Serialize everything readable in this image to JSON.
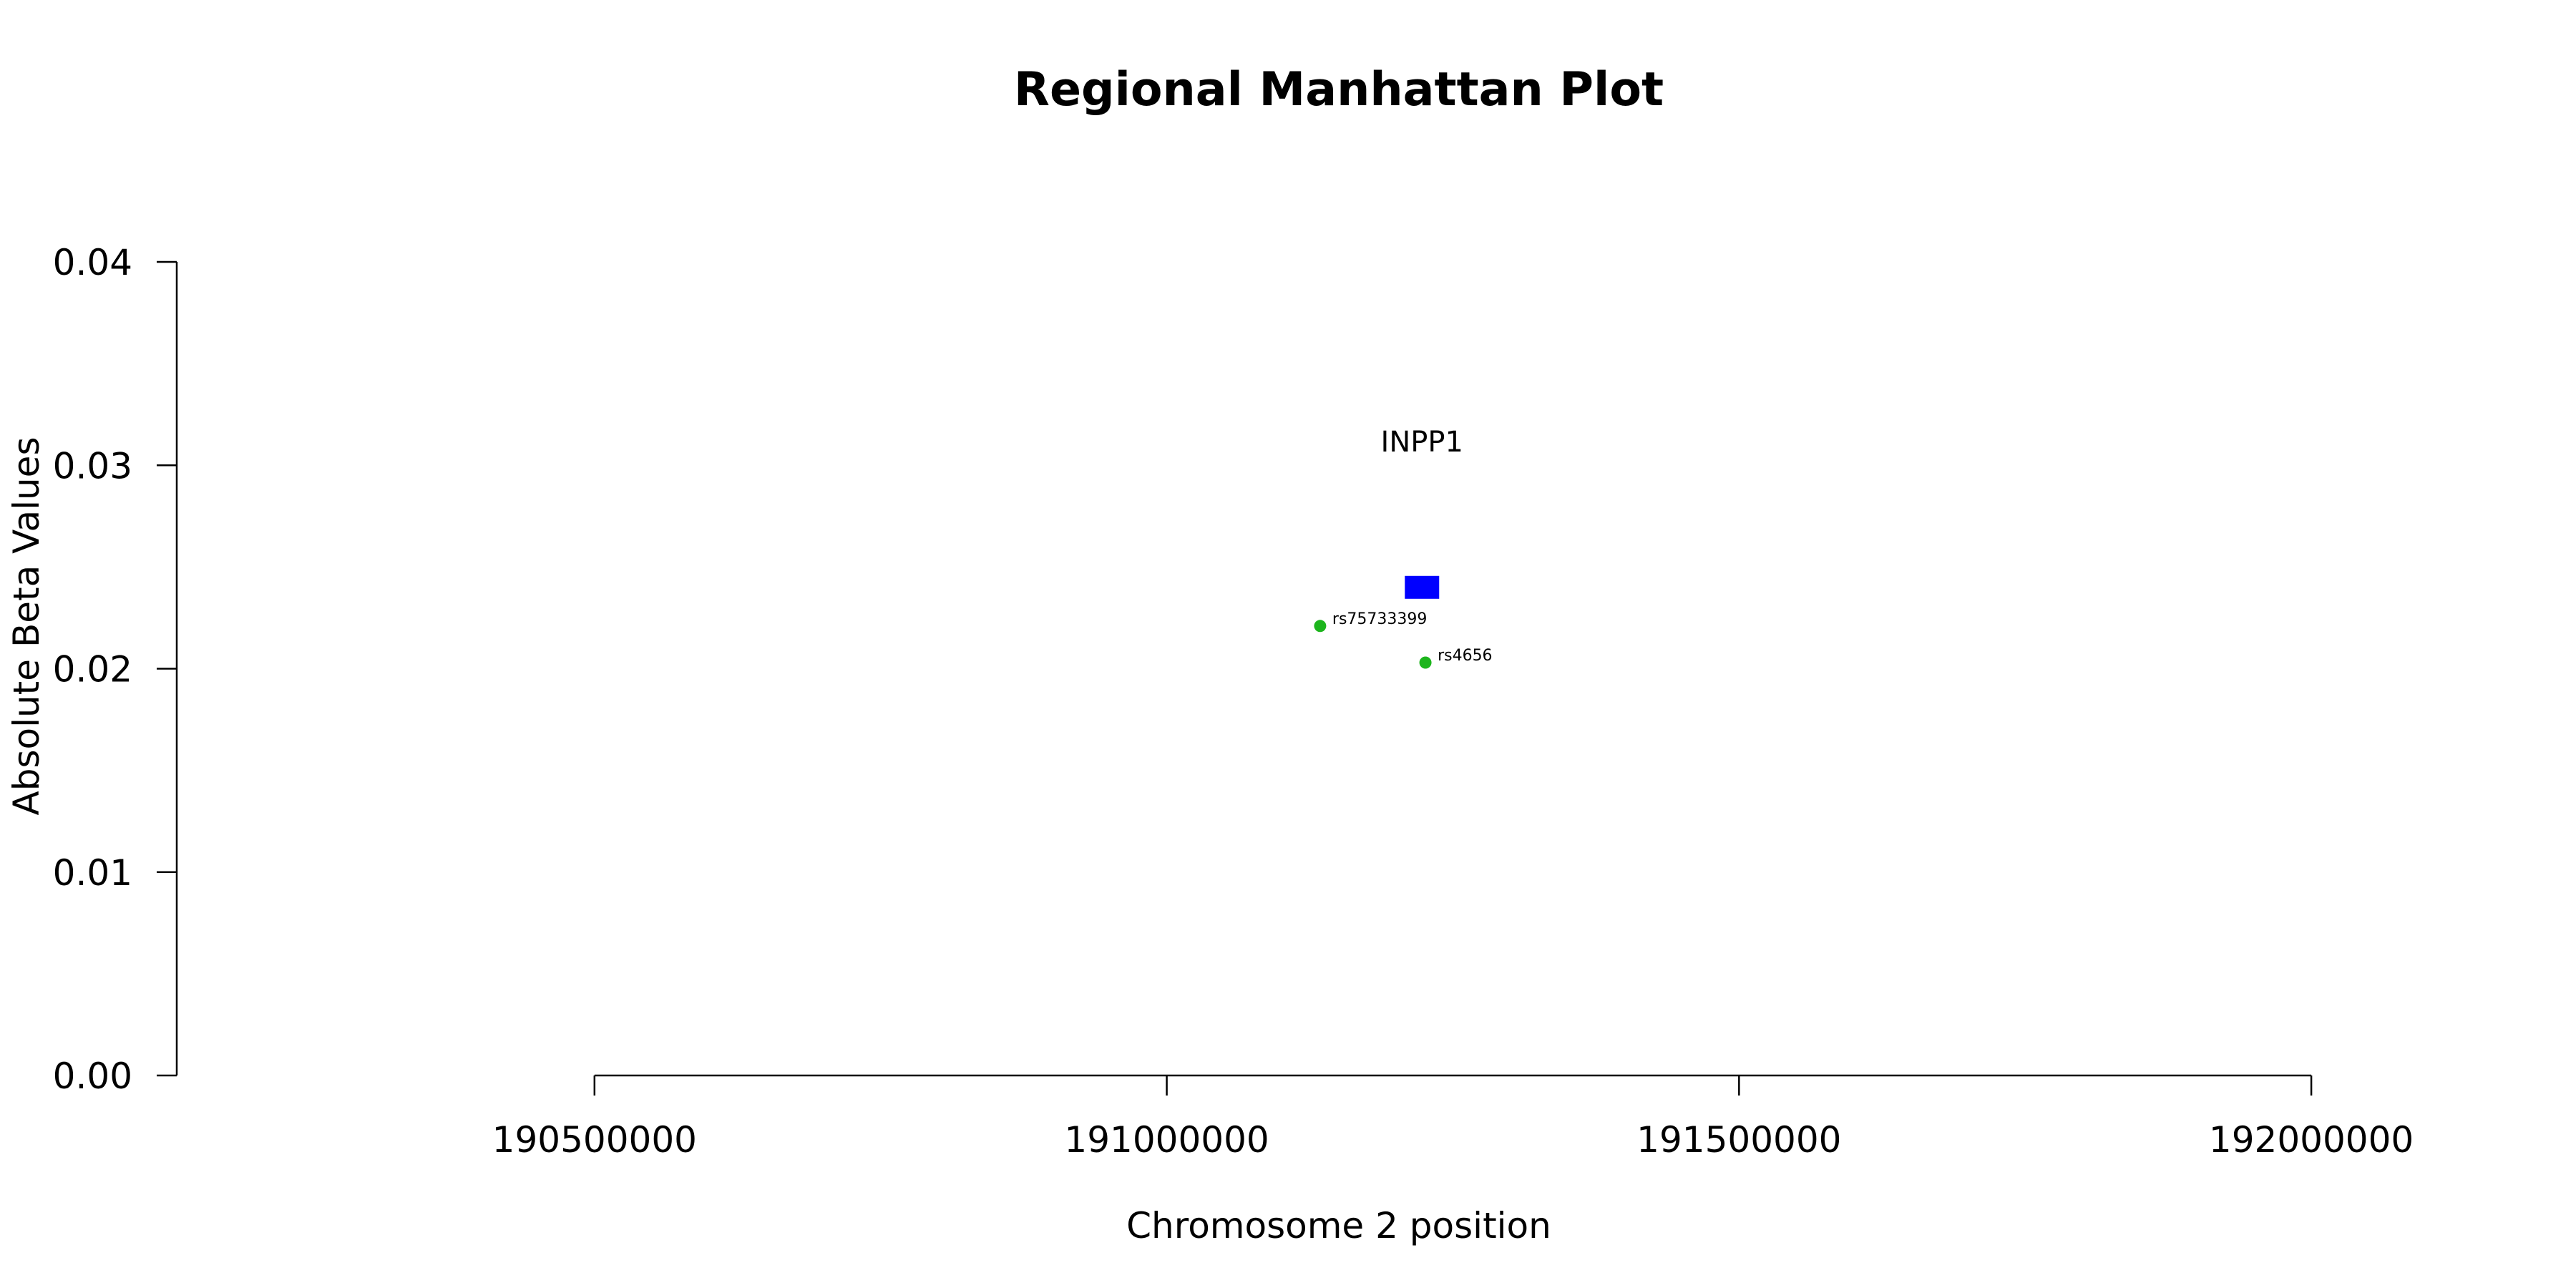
{
  "chart_data": {
    "type": "scatter",
    "title": "Regional Manhattan Plot",
    "xlabel": "Chromosome 2 position",
    "ylabel": "Absolute Beta Values",
    "xlim": [
      190135000,
      192165000
    ],
    "ylim": [
      0,
      0.04
    ],
    "x_ticks": [
      190500000,
      191000000,
      191500000,
      192000000
    ],
    "x_tick_labels": [
      "190500000",
      "191000000",
      "191500000",
      "192000000"
    ],
    "x_axis_range": [
      190500000,
      192000000
    ],
    "y_ticks": [
      0,
      0.01,
      0.02,
      0.03,
      0.04
    ],
    "y_tick_labels": [
      "0.00",
      "0.01",
      "0.02",
      "0.03",
      "0.04"
    ],
    "grid": false,
    "colors": {
      "snp": "#1db51d",
      "gene": "#0000ff"
    },
    "snps": [
      {
        "id": "rs75733399",
        "x": 191134000,
        "y": 0.0221
      },
      {
        "id": "rs4656",
        "x": 191226000,
        "y": 0.0203
      }
    ],
    "genes": [
      {
        "name": "INPP1",
        "start": 191208000,
        "end": 191238000,
        "y": 0.024
      }
    ]
  }
}
